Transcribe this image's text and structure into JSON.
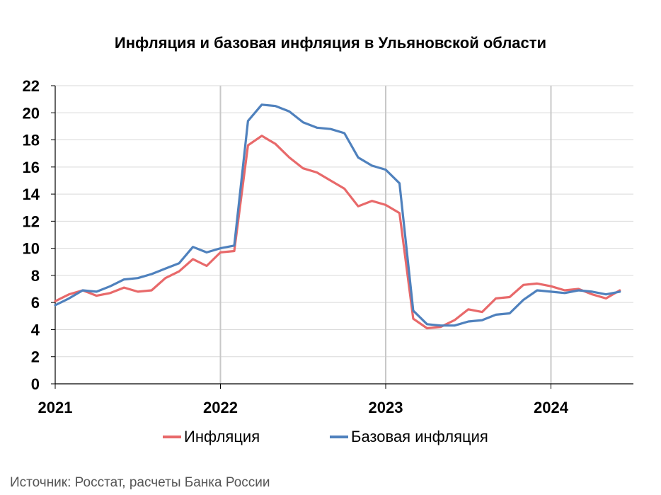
{
  "chart_data": {
    "type": "line",
    "title": "Инфляция и базовая инфляция в Ульяновской области",
    "xlabel": "",
    "ylabel": "",
    "ylim": [
      0,
      22
    ],
    "yticks": [
      "0",
      "2",
      "4",
      "6",
      "8",
      "10",
      "12",
      "14",
      "16",
      "18",
      "20",
      "22"
    ],
    "xticks": [
      "2021",
      "2022",
      "2023",
      "2024"
    ],
    "x_start": "2021-01",
    "grid": "vertical lines at year boundaries, horizontal gridlines at each y tick",
    "legend_position": "bottom",
    "series": [
      {
        "name": "Инфляция",
        "color": "#E8696A",
        "values": [
          6.1,
          6.6,
          6.9,
          6.5,
          6.7,
          7.1,
          6.8,
          6.9,
          7.8,
          8.3,
          9.2,
          8.7,
          9.7,
          9.8,
          17.6,
          18.3,
          17.7,
          16.7,
          15.9,
          15.6,
          15.0,
          14.4,
          13.1,
          13.5,
          13.2,
          12.6,
          4.8,
          4.1,
          4.2,
          4.7,
          5.5,
          5.3,
          6.3,
          6.4,
          7.3,
          7.4,
          7.2,
          6.9,
          7.0,
          6.6,
          6.3,
          6.9
        ]
      },
      {
        "name": "Базовая инфляция",
        "color": "#4F81BD",
        "values": [
          5.8,
          6.3,
          6.9,
          6.8,
          7.2,
          7.7,
          7.8,
          8.1,
          8.5,
          8.9,
          10.1,
          9.7,
          10.0,
          10.2,
          19.4,
          20.6,
          20.5,
          20.1,
          19.3,
          18.9,
          18.8,
          18.5,
          16.7,
          16.1,
          15.8,
          14.8,
          5.4,
          4.4,
          4.3,
          4.3,
          4.6,
          4.7,
          5.1,
          5.2,
          6.2,
          6.9,
          6.8,
          6.7,
          6.9,
          6.8,
          6.6,
          6.8
        ]
      }
    ]
  },
  "source": "Источник: Росстат, расчеты Банка России"
}
